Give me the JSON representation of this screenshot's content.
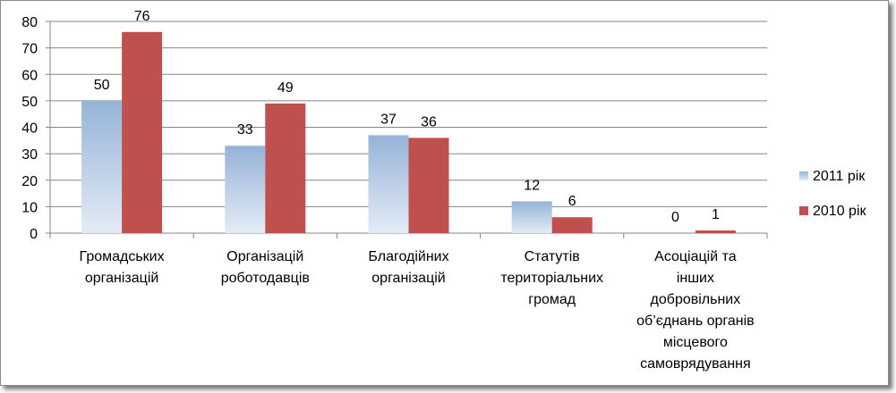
{
  "chart_data": {
    "type": "bar",
    "categories": [
      [
        "Громадських",
        "організацій"
      ],
      [
        "Організацій",
        "роботодавців"
      ],
      [
        "Благодійних",
        "організацій"
      ],
      [
        "Статутів",
        "територіальних",
        "громад"
      ],
      [
        "Асоціацій та",
        "інших",
        "добровільних",
        "об’єднань органів",
        "місцевого",
        "самоврядування"
      ]
    ],
    "series": [
      {
        "name": "2011 рік",
        "values": [
          50,
          33,
          37,
          12,
          0
        ],
        "color": "#95b3d7",
        "color_light": "#dbe5f1"
      },
      {
        "name": "2010 рік",
        "values": [
          76,
          49,
          36,
          6,
          1
        ],
        "color": "#c0504d"
      }
    ],
    "ylim": [
      0,
      80
    ],
    "yticks": [
      "0",
      "10",
      "20",
      "30",
      "40",
      "50",
      "60",
      "70",
      "80"
    ],
    "grid": true,
    "legend_position": "right",
    "title": "",
    "xlabel": "",
    "ylabel": ""
  }
}
